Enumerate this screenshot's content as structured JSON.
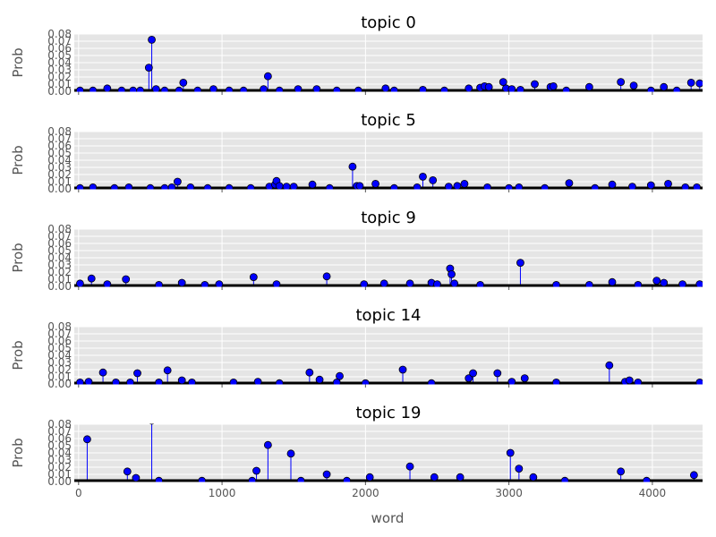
{
  "chart_data": {
    "type": "stem",
    "xlabel": "word",
    "ylabel": "Prob",
    "xlim": [
      -30,
      4350
    ],
    "ylim": [
      0,
      0.08
    ],
    "yticks": [
      0.0,
      0.01,
      0.02,
      0.03,
      0.04,
      0.05,
      0.06,
      0.07,
      0.08
    ],
    "xticks": [
      0,
      1000,
      2000,
      3000,
      4000
    ],
    "grid": true,
    "colors": {
      "panel_bg": "#e5e5e5",
      "grid": "#ffffff",
      "stem": "#0000ff",
      "marker": "#0000ff",
      "baseline": "#000000"
    },
    "panels": [
      {
        "title": "topic 0",
        "points": [
          [
            10,
            0.001
          ],
          [
            100,
            0.001
          ],
          [
            200,
            0.004
          ],
          [
            300,
            0.001
          ],
          [
            380,
            0.001
          ],
          [
            430,
            0.001
          ],
          [
            490,
            0.033
          ],
          [
            510,
            0.072
          ],
          [
            540,
            0.003
          ],
          [
            600,
            0.001
          ],
          [
            700,
            0.001
          ],
          [
            730,
            0.012
          ],
          [
            830,
            0.001
          ],
          [
            940,
            0.003
          ],
          [
            1050,
            0.001
          ],
          [
            1150,
            0.001
          ],
          [
            1290,
            0.003
          ],
          [
            1320,
            0.021
          ],
          [
            1400,
            0.001
          ],
          [
            1530,
            0.003
          ],
          [
            1660,
            0.003
          ],
          [
            1800,
            0.001
          ],
          [
            1950,
            0.001
          ],
          [
            2140,
            0.004
          ],
          [
            2200,
            0.001
          ],
          [
            2400,
            0.002
          ],
          [
            2550,
            0.001
          ],
          [
            2720,
            0.004
          ],
          [
            2800,
            0.005
          ],
          [
            2830,
            0.007
          ],
          [
            2860,
            0.006
          ],
          [
            2960,
            0.013
          ],
          [
            2980,
            0.004
          ],
          [
            3020,
            0.003
          ],
          [
            3080,
            0.002
          ],
          [
            3180,
            0.01
          ],
          [
            3290,
            0.006
          ],
          [
            3310,
            0.007
          ],
          [
            3400,
            0.001
          ],
          [
            3560,
            0.006
          ],
          [
            3780,
            0.013
          ],
          [
            3870,
            0.008
          ],
          [
            3990,
            0.001
          ],
          [
            4080,
            0.006
          ],
          [
            4170,
            0.001
          ],
          [
            4270,
            0.012
          ],
          [
            4330,
            0.011
          ]
        ]
      },
      {
        "title": "topic 5",
        "points": [
          [
            10,
            0.001
          ],
          [
            100,
            0.002
          ],
          [
            250,
            0.001
          ],
          [
            350,
            0.002
          ],
          [
            500,
            0.001
          ],
          [
            600,
            0.001
          ],
          [
            650,
            0.002
          ],
          [
            690,
            0.01
          ],
          [
            780,
            0.002
          ],
          [
            900,
            0.001
          ],
          [
            1050,
            0.001
          ],
          [
            1200,
            0.001
          ],
          [
            1330,
            0.003
          ],
          [
            1370,
            0.006
          ],
          [
            1380,
            0.011
          ],
          [
            1400,
            0.004
          ],
          [
            1450,
            0.003
          ],
          [
            1500,
            0.003
          ],
          [
            1630,
            0.006
          ],
          [
            1750,
            0.001
          ],
          [
            1910,
            0.031
          ],
          [
            1940,
            0.004
          ],
          [
            1960,
            0.004
          ],
          [
            2070,
            0.007
          ],
          [
            2200,
            0.001
          ],
          [
            2360,
            0.002
          ],
          [
            2400,
            0.017
          ],
          [
            2470,
            0.012
          ],
          [
            2580,
            0.003
          ],
          [
            2640,
            0.004
          ],
          [
            2690,
            0.007
          ],
          [
            2850,
            0.002
          ],
          [
            3000,
            0.001
          ],
          [
            3070,
            0.002
          ],
          [
            3250,
            0.001
          ],
          [
            3420,
            0.008
          ],
          [
            3600,
            0.001
          ],
          [
            3720,
            0.006
          ],
          [
            3860,
            0.003
          ],
          [
            3990,
            0.005
          ],
          [
            4110,
            0.007
          ],
          [
            4230,
            0.002
          ],
          [
            4310,
            0.002
          ]
        ]
      },
      {
        "title": "topic 9",
        "points": [
          [
            10,
            0.004
          ],
          [
            90,
            0.011
          ],
          [
            200,
            0.003
          ],
          [
            330,
            0.01
          ],
          [
            560,
            0.002
          ],
          [
            720,
            0.005
          ],
          [
            880,
            0.002
          ],
          [
            980,
            0.003
          ],
          [
            1220,
            0.013
          ],
          [
            1380,
            0.003
          ],
          [
            1730,
            0.014
          ],
          [
            1990,
            0.003
          ],
          [
            2130,
            0.004
          ],
          [
            2310,
            0.004
          ],
          [
            2460,
            0.005
          ],
          [
            2500,
            0.003
          ],
          [
            2590,
            0.025
          ],
          [
            2600,
            0.017
          ],
          [
            2620,
            0.004
          ],
          [
            2800,
            0.002
          ],
          [
            3080,
            0.033
          ],
          [
            3330,
            0.002
          ],
          [
            3560,
            0.002
          ],
          [
            3720,
            0.006
          ],
          [
            3900,
            0.002
          ],
          [
            4030,
            0.008
          ],
          [
            4080,
            0.005
          ],
          [
            4210,
            0.003
          ],
          [
            4330,
            0.003
          ]
        ]
      },
      {
        "title": "topic 14",
        "points": [
          [
            10,
            0.002
          ],
          [
            70,
            0.003
          ],
          [
            170,
            0.016
          ],
          [
            260,
            0.002
          ],
          [
            360,
            0.002
          ],
          [
            410,
            0.015
          ],
          [
            560,
            0.002
          ],
          [
            620,
            0.019
          ],
          [
            720,
            0.005
          ],
          [
            790,
            0.002
          ],
          [
            1080,
            0.002
          ],
          [
            1250,
            0.003
          ],
          [
            1400,
            0.001
          ],
          [
            1610,
            0.016
          ],
          [
            1680,
            0.006
          ],
          [
            1800,
            0.002
          ],
          [
            1820,
            0.011
          ],
          [
            2000,
            0.001
          ],
          [
            2260,
            0.02
          ],
          [
            2460,
            0.001
          ],
          [
            2720,
            0.008
          ],
          [
            2750,
            0.015
          ],
          [
            2920,
            0.015
          ],
          [
            3020,
            0.003
          ],
          [
            3110,
            0.008
          ],
          [
            3330,
            0.002
          ],
          [
            3700,
            0.026
          ],
          [
            3810,
            0.003
          ],
          [
            3840,
            0.005
          ],
          [
            3900,
            0.002
          ],
          [
            4330,
            0.002
          ]
        ]
      },
      {
        "title": "topic 19",
        "points": [
          [
            60,
            0.059
          ],
          [
            340,
            0.014
          ],
          [
            400,
            0.005
          ],
          [
            510,
            0.085
          ],
          [
            560,
            0.001
          ],
          [
            860,
            0.001
          ],
          [
            1210,
            0.001
          ],
          [
            1240,
            0.015
          ],
          [
            1320,
            0.051
          ],
          [
            1480,
            0.039
          ],
          [
            1550,
            0.001
          ],
          [
            1730,
            0.01
          ],
          [
            1870,
            0.001
          ],
          [
            2030,
            0.006
          ],
          [
            2310,
            0.021
          ],
          [
            2480,
            0.006
          ],
          [
            2660,
            0.006
          ],
          [
            3010,
            0.04
          ],
          [
            3070,
            0.018
          ],
          [
            3170,
            0.006
          ],
          [
            3390,
            0.001
          ],
          [
            3780,
            0.014
          ],
          [
            3960,
            0.001
          ],
          [
            4290,
            0.009
          ]
        ]
      }
    ]
  }
}
